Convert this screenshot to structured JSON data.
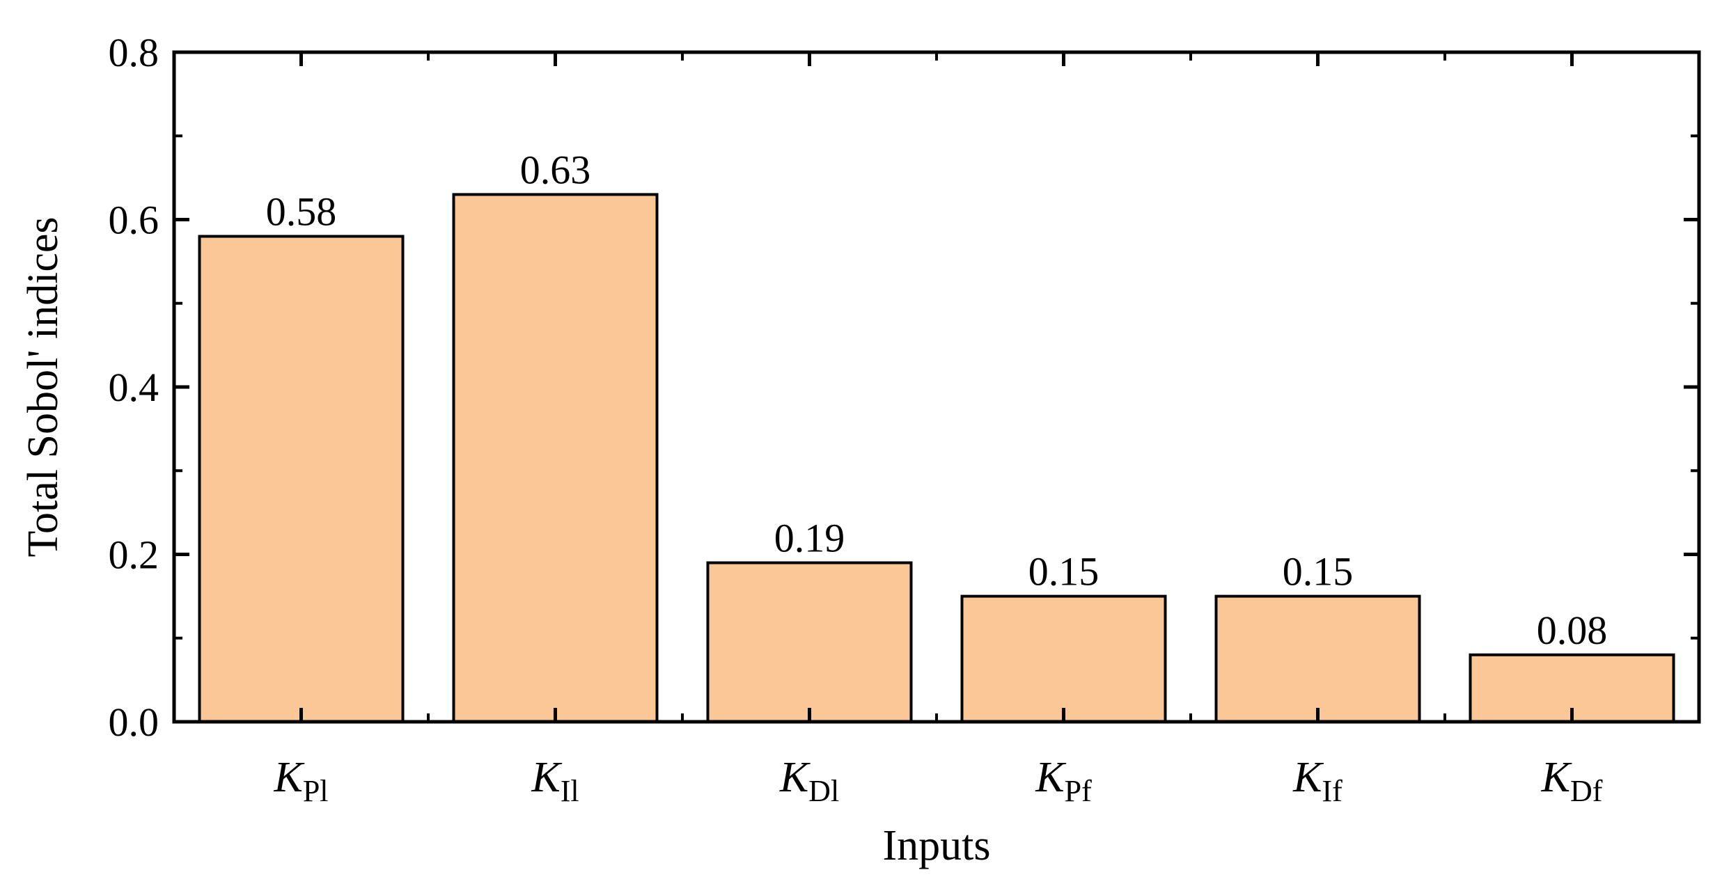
{
  "chart_data": {
    "type": "bar",
    "title": "",
    "xlabel": "Inputs",
    "ylabel": "Total Sobol' indices",
    "ylim": [
      0,
      0.8
    ],
    "yticks": [
      "0.0",
      "0.2",
      "0.4",
      "0.6",
      "0.8"
    ],
    "categories": [
      {
        "main": "K",
        "sub": "Pl"
      },
      {
        "main": "K",
        "sub": "Il"
      },
      {
        "main": "K",
        "sub": "Dl"
      },
      {
        "main": "K",
        "sub": "Pf"
      },
      {
        "main": "K",
        "sub": "If"
      },
      {
        "main": "K",
        "sub": "Df"
      }
    ],
    "values": [
      0.58,
      0.63,
      0.19,
      0.15,
      0.15,
      0.08
    ],
    "value_labels": [
      "0.58",
      "0.63",
      "0.19",
      "0.15",
      "0.15",
      "0.08"
    ],
    "bar_color": "#FCC797",
    "edge_color": "#000000",
    "grid": false,
    "legend": "none"
  }
}
